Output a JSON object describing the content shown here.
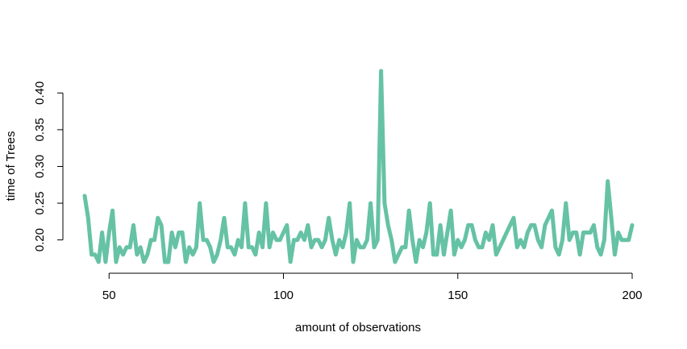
{
  "chart_data": {
    "type": "line",
    "title": "",
    "xlabel": "amount of observations",
    "ylabel": "time of Trees",
    "xlim": [
      43,
      200
    ],
    "ylim": [
      0.17,
      0.43
    ],
    "x_ticks": [
      50,
      100,
      150,
      200
    ],
    "x_tick_labels": [
      "50",
      "100",
      "150",
      "200"
    ],
    "y_ticks": [
      0.2,
      0.25,
      0.3,
      0.35,
      0.4
    ],
    "y_tick_labels": [
      "0.20",
      "0.25",
      "0.30",
      "0.35",
      "0.40"
    ],
    "grid": false,
    "legend": "none",
    "line_color": "#66c2a5",
    "x": [
      43,
      44,
      45,
      46,
      47,
      48,
      49,
      50,
      51,
      52,
      53,
      54,
      55,
      56,
      57,
      58,
      59,
      60,
      61,
      62,
      63,
      64,
      65,
      66,
      67,
      68,
      69,
      70,
      71,
      72,
      73,
      74,
      75,
      76,
      77,
      78,
      79,
      80,
      81,
      82,
      83,
      84,
      85,
      86,
      87,
      88,
      89,
      90,
      91,
      92,
      93,
      94,
      95,
      96,
      97,
      98,
      99,
      100,
      101,
      102,
      103,
      104,
      105,
      106,
      107,
      108,
      109,
      110,
      111,
      112,
      113,
      114,
      115,
      116,
      117,
      118,
      119,
      120,
      121,
      122,
      123,
      124,
      125,
      126,
      127,
      128,
      129,
      130,
      131,
      132,
      133,
      134,
      135,
      136,
      137,
      138,
      139,
      140,
      141,
      142,
      143,
      144,
      145,
      146,
      147,
      148,
      149,
      150,
      151,
      152,
      153,
      154,
      155,
      156,
      157,
      158,
      159,
      160,
      161,
      162,
      163,
      164,
      165,
      166,
      167,
      168,
      169,
      170,
      171,
      172,
      173,
      174,
      175,
      176,
      177,
      178,
      179,
      180,
      181,
      182,
      183,
      184,
      185,
      186,
      187,
      188,
      189,
      190,
      191,
      192,
      193,
      194,
      195,
      196,
      197,
      198,
      199,
      200
    ],
    "y": [
      0.26,
      0.23,
      0.18,
      0.18,
      0.17,
      0.21,
      0.17,
      0.21,
      0.24,
      0.17,
      0.19,
      0.18,
      0.19,
      0.19,
      0.22,
      0.18,
      0.19,
      0.17,
      0.18,
      0.2,
      0.2,
      0.23,
      0.22,
      0.17,
      0.17,
      0.21,
      0.19,
      0.21,
      0.21,
      0.17,
      0.19,
      0.18,
      0.19,
      0.25,
      0.2,
      0.2,
      0.19,
      0.17,
      0.18,
      0.2,
      0.23,
      0.19,
      0.19,
      0.18,
      0.2,
      0.19,
      0.25,
      0.19,
      0.19,
      0.18,
      0.21,
      0.19,
      0.25,
      0.19,
      0.21,
      0.2,
      0.2,
      0.21,
      0.22,
      0.17,
      0.2,
      0.2,
      0.21,
      0.2,
      0.22,
      0.19,
      0.2,
      0.2,
      0.19,
      0.2,
      0.23,
      0.2,
      0.18,
      0.2,
      0.19,
      0.21,
      0.25,
      0.17,
      0.2,
      0.19,
      0.19,
      0.2,
      0.25,
      0.19,
      0.2,
      0.43,
      0.25,
      0.22,
      0.2,
      0.17,
      0.18,
      0.19,
      0.19,
      0.24,
      0.2,
      0.17,
      0.2,
      0.19,
      0.21,
      0.25,
      0.18,
      0.18,
      0.22,
      0.18,
      0.21,
      0.24,
      0.18,
      0.2,
      0.19,
      0.2,
      0.22,
      0.22,
      0.2,
      0.19,
      0.19,
      0.21,
      0.2,
      0.22,
      0.18,
      0.19,
      0.2,
      0.21,
      0.22,
      0.23,
      0.19,
      0.2,
      0.19,
      0.21,
      0.22,
      0.22,
      0.2,
      0.19,
      0.22,
      0.23,
      0.24,
      0.19,
      0.18,
      0.2,
      0.25,
      0.2,
      0.21,
      0.21,
      0.18,
      0.21,
      0.21,
      0.21,
      0.22,
      0.19,
      0.18,
      0.2,
      0.28,
      0.23,
      0.18,
      0.21,
      0.2,
      0.2,
      0.2,
      0.22
    ]
  }
}
